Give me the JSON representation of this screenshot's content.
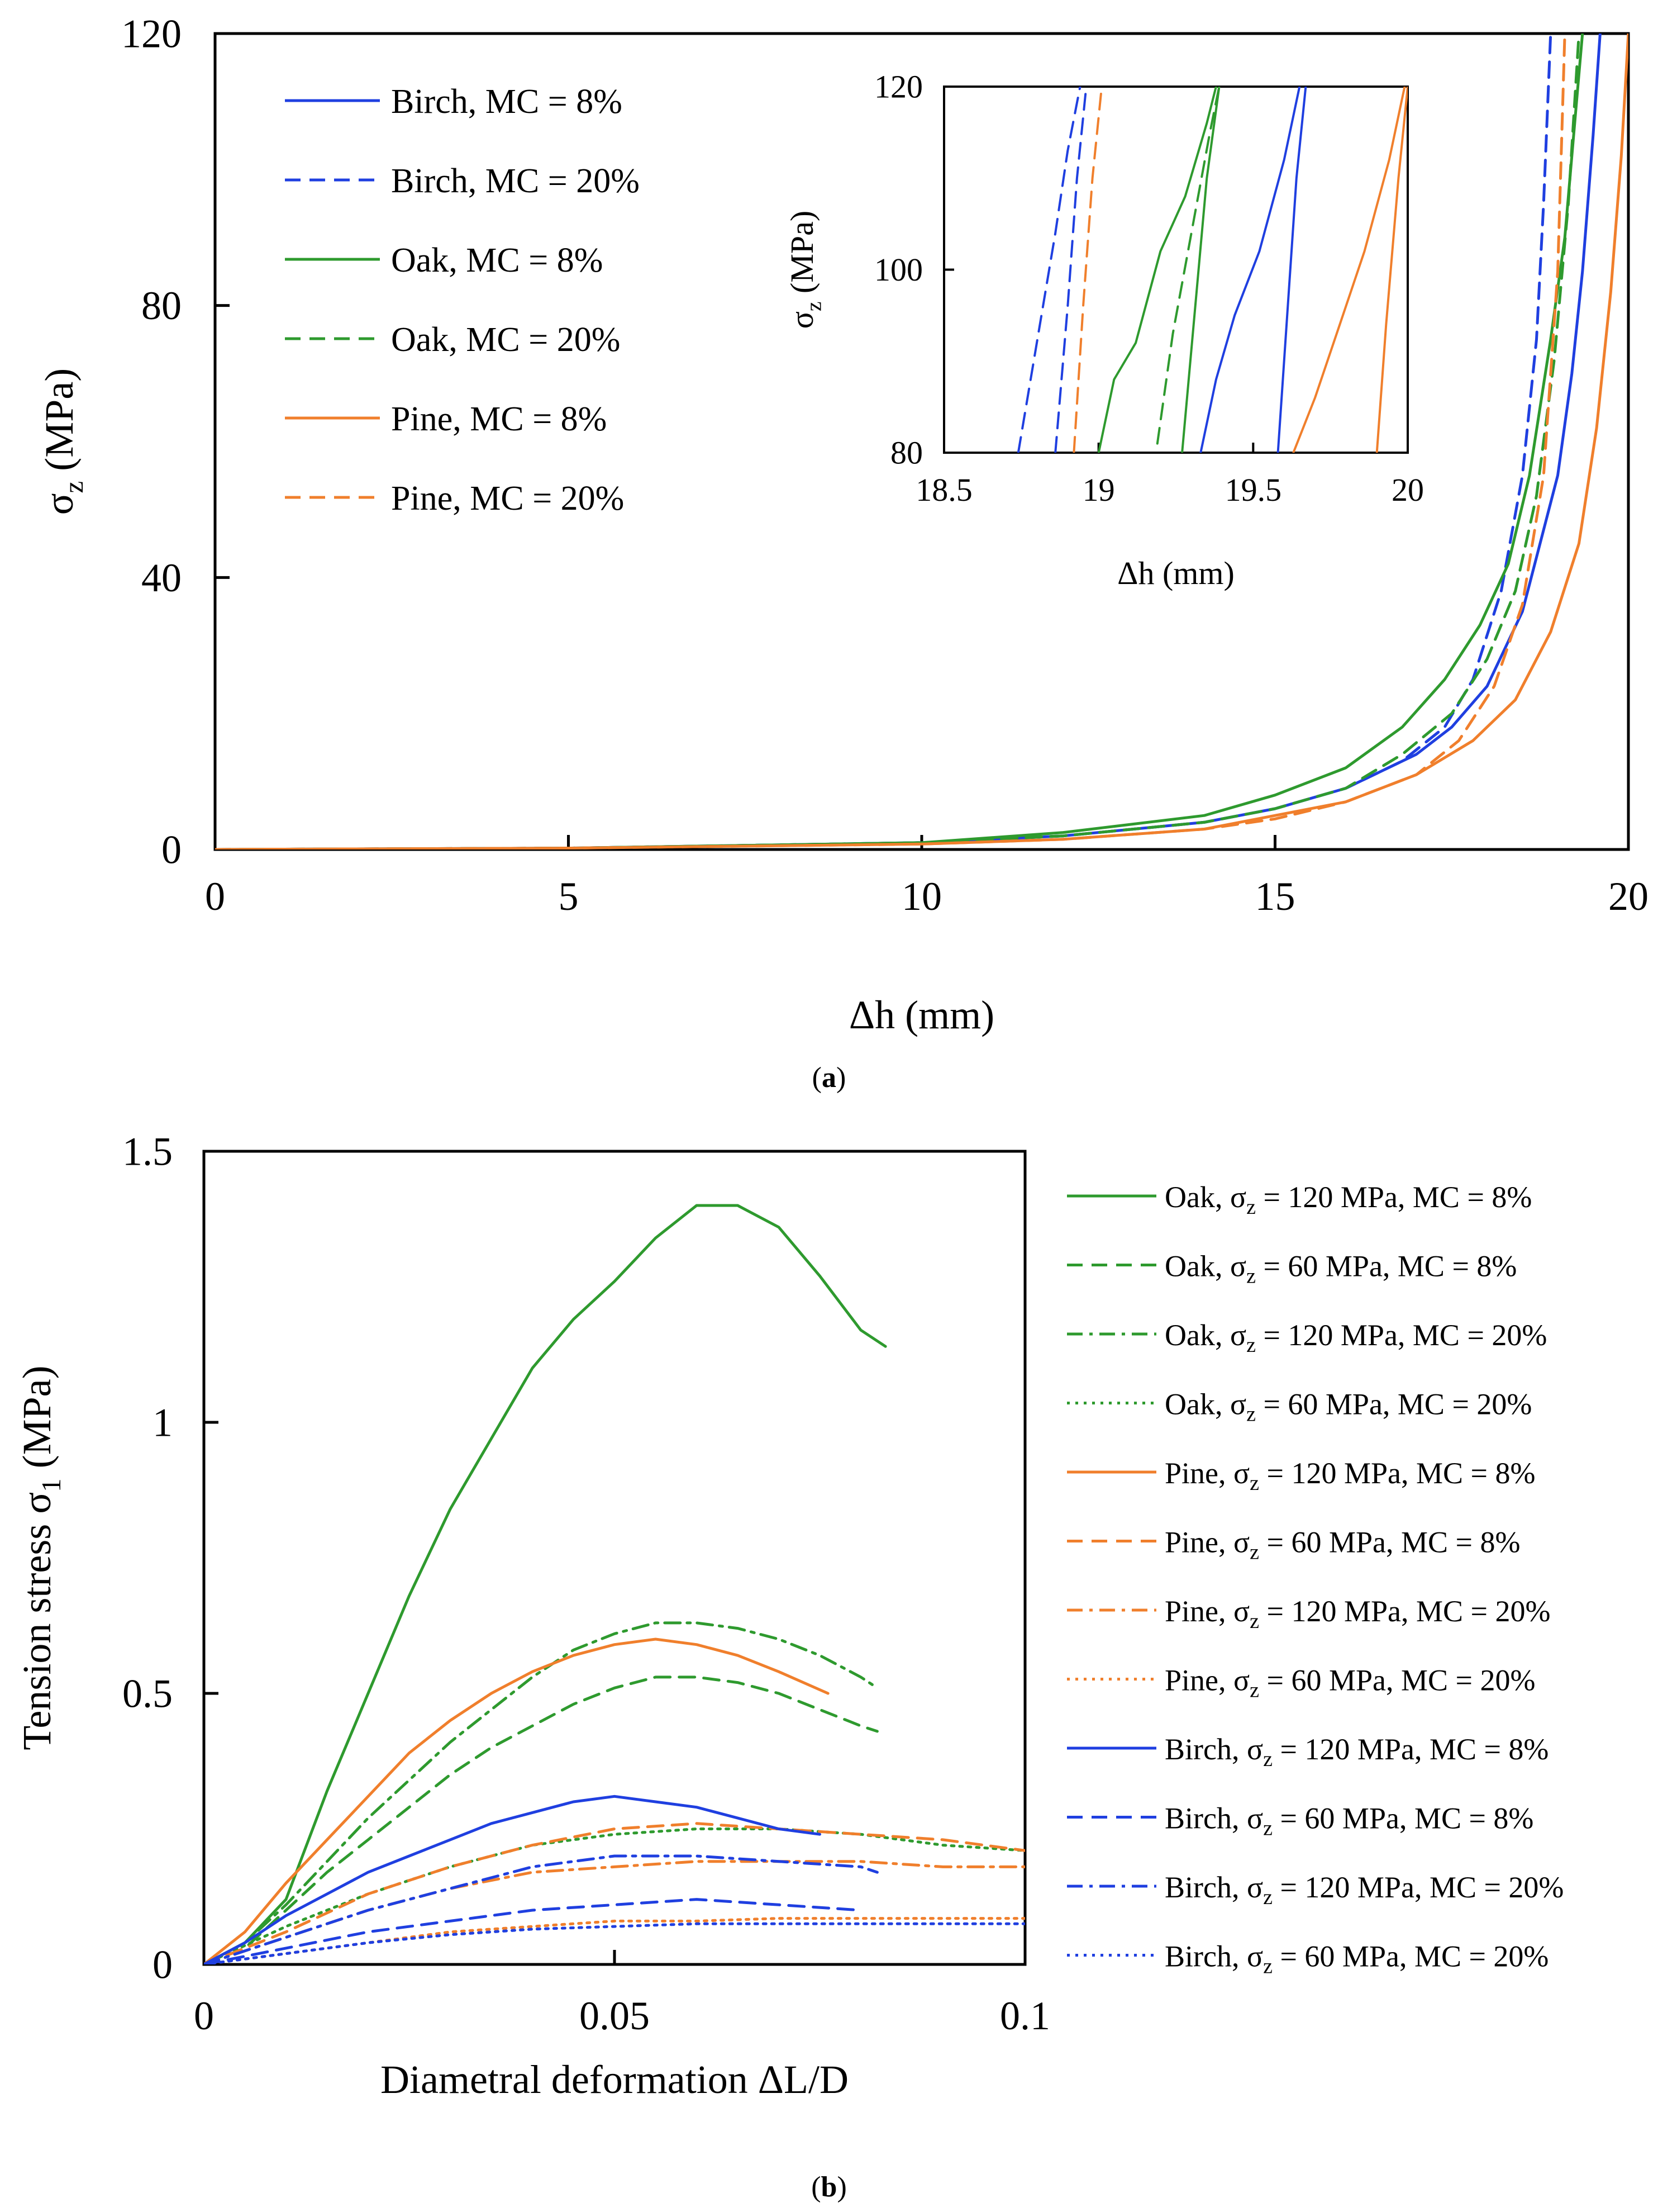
{
  "colors": {
    "birch": "#1f3fe0",
    "oak": "#2e9a2e",
    "pine": "#f07f2c",
    "axis": "#000000"
  },
  "panel_labels": {
    "a": "a",
    "b": "b"
  },
  "chart_data": [
    {
      "id": "a",
      "type": "line",
      "xlabel": "Δh  (mm)",
      "ylabel": "σ",
      "ylabel_sub": "z",
      "ylabel_unit": "(MPa)",
      "xlim": [
        0,
        20
      ],
      "ylim": [
        0,
        120
      ],
      "xticks": [
        "0",
        "5",
        "10",
        "15",
        "20"
      ],
      "yticks": [
        "0",
        "40",
        "80",
        "120"
      ],
      "legend": "top-left",
      "series": [
        {
          "name": "Birch, MC = 8%",
          "color": "birch",
          "dash": "solid",
          "x": [
            0,
            5,
            10,
            12,
            14,
            15,
            16,
            17,
            17.5,
            18,
            18.5,
            19,
            19.2,
            19.35,
            19.5,
            19.6
          ],
          "y": [
            0,
            0.2,
            1,
            2,
            4,
            6,
            9,
            14,
            18,
            24,
            35,
            55,
            70,
            85,
            105,
            120
          ]
        },
        {
          "name": "Birch, MC = 20%",
          "color": "birch",
          "dash": "dash",
          "x": [
            0,
            5,
            10,
            12,
            14,
            15,
            16,
            16.8,
            17.4,
            17.8,
            18.2,
            18.5,
            18.7,
            18.8,
            18.9
          ],
          "y": [
            0,
            0.2,
            1,
            2,
            4,
            6,
            9,
            13,
            18,
            25,
            38,
            55,
            75,
            95,
            120
          ]
        },
        {
          "name": "Oak, MC = 8%",
          "color": "oak",
          "dash": "solid",
          "x": [
            0,
            5,
            10,
            12,
            14,
            15,
            16,
            16.8,
            17.4,
            17.9,
            18.3,
            18.6,
            18.9,
            19.1,
            19.25,
            19.35
          ],
          "y": [
            0,
            0.2,
            1,
            2.5,
            5,
            8,
            12,
            18,
            25,
            33,
            42,
            55,
            75,
            90,
            108,
            120
          ]
        },
        {
          "name": "Oak, MC = 20%",
          "color": "oak",
          "dash": "dash",
          "x": [
            0,
            5,
            10,
            12,
            14,
            15,
            16,
            16.8,
            17.5,
            18,
            18.4,
            18.7,
            18.95,
            19.15,
            19.3
          ],
          "y": [
            0,
            0.2,
            1,
            2,
            4,
            6,
            9,
            14,
            20,
            28,
            38,
            52,
            72,
            95,
            120
          ]
        },
        {
          "name": "Pine, MC = 8%",
          "color": "pine",
          "dash": "solid",
          "x": [
            0,
            5,
            10,
            12,
            14,
            15,
            16,
            17,
            17.8,
            18.4,
            18.9,
            19.3,
            19.55,
            19.75,
            19.9,
            20
          ],
          "y": [
            0,
            0.2,
            0.8,
            1.5,
            3,
            5,
            7,
            11,
            16,
            22,
            32,
            45,
            62,
            82,
            102,
            120
          ]
        },
        {
          "name": "Pine, MC = 20%",
          "color": "pine",
          "dash": "dash",
          "x": [
            0,
            5,
            10,
            12,
            14,
            15,
            16,
            17,
            17.6,
            18.1,
            18.5,
            18.8,
            19,
            19.1
          ],
          "y": [
            0,
            0.2,
            0.8,
            1.5,
            3,
            4.5,
            7,
            11,
            16,
            24,
            36,
            55,
            85,
            120
          ]
        }
      ],
      "inset": {
        "xlabel": "Δh  (mm)",
        "ylabel": "σ",
        "ylabel_sub": "z",
        "ylabel_unit": "(MPa)",
        "xlim": [
          18.5,
          20
        ],
        "ylim": [
          80,
          120
        ],
        "xticks": [
          "18.5",
          "19",
          "19.5",
          "20"
        ],
        "yticks": [
          "80",
          "100",
          "120"
        ],
        "series": [
          {
            "name": "Birch, MC = 20%",
            "color": "birch",
            "dash": "dash",
            "x": [
              18.74,
              18.8,
              18.86,
              18.9,
              18.94
            ],
            "y": [
              80,
              92,
              104,
              113,
              120
            ]
          },
          {
            "name": "Birch, MC = 20%",
            "color": "birch",
            "dash": "dash",
            "x": [
              18.86,
              18.9,
              18.93,
              18.96
            ],
            "y": [
              80,
              96,
              110,
              120
            ]
          },
          {
            "name": "Pine, MC = 20%",
            "color": "pine",
            "dash": "dash",
            "x": [
              18.92,
              18.95,
              18.98,
              19.01
            ],
            "y": [
              80,
              96,
              110,
              120
            ]
          },
          {
            "name": "Oak, MC = 8%",
            "color": "oak",
            "dash": "solid",
            "x": [
              19,
              19.05,
              19.12,
              19.2,
              19.28,
              19.35,
              19.38
            ],
            "y": [
              80,
              88,
              92,
              102,
              108,
              116,
              120
            ]
          },
          {
            "name": "Oak, MC = 20%",
            "color": "oak",
            "dash": "dash",
            "x": [
              19.19,
              19.24,
              19.3,
              19.36,
              19.39
            ],
            "y": [
              81,
              93,
              104,
              115,
              120
            ]
          },
          {
            "name": "Oak, MC = 8%",
            "color": "oak",
            "dash": "solid",
            "x": [
              19.27,
              19.31,
              19.35,
              19.39
            ],
            "y": [
              80,
              95,
              110,
              120
            ]
          },
          {
            "name": "Birch, MC = 8%",
            "color": "birch",
            "dash": "solid",
            "x": [
              19.33,
              19.38,
              19.44,
              19.52,
              19.6,
              19.65
            ],
            "y": [
              80,
              88,
              95,
              102,
              112,
              120
            ]
          },
          {
            "name": "Birch, MC = 8%",
            "color": "birch",
            "dash": "solid",
            "x": [
              19.58,
              19.61,
              19.64,
              19.67
            ],
            "y": [
              80,
              95,
              110,
              120
            ]
          },
          {
            "name": "Pine, MC = 8%",
            "color": "pine",
            "dash": "solid",
            "x": [
              19.63,
              19.7,
              19.78,
              19.86,
              19.94,
              19.99
            ],
            "y": [
              80,
              86,
              94,
              102,
              112,
              120
            ]
          },
          {
            "name": "Pine, MC = 8%",
            "color": "pine",
            "dash": "solid",
            "x": [
              19.9,
              19.93,
              19.97,
              20
            ],
            "y": [
              80,
              94,
              110,
              120
            ]
          }
        ]
      }
    },
    {
      "id": "b",
      "type": "line",
      "xlabel": "Diametral deformation ΔL/D",
      "ylabel": "Tension stress  σ",
      "ylabel_sub": "1",
      "ylabel_unit": "(MPa)",
      "xlim": [
        0,
        0.1
      ],
      "ylim": [
        0,
        1.5
      ],
      "xticks": [
        "0",
        "0.05",
        "0.1"
      ],
      "yticks": [
        "0",
        "0.5",
        "1",
        "1.5"
      ],
      "legend": "right",
      "legend_sigma": "σ",
      "legend_sub": "z",
      "series": [
        {
          "species": "Oak,",
          "stress": "= 120 MPa, MC = 8%",
          "color": "oak",
          "dash": "solid",
          "x": [
            0,
            0.005,
            0.01,
            0.015,
            0.02,
            0.025,
            0.03,
            0.035,
            0.04,
            0.045,
            0.05,
            0.055,
            0.06,
            0.065,
            0.07,
            0.075,
            0.08,
            0.083
          ],
          "y": [
            0,
            0.04,
            0.12,
            0.32,
            0.5,
            0.68,
            0.84,
            0.97,
            1.1,
            1.19,
            1.26,
            1.34,
            1.4,
            1.4,
            1.36,
            1.27,
            1.17,
            1.14
          ]
        },
        {
          "species": "Oak,",
          "stress": "=   60 MPa, MC = 8%",
          "color": "oak",
          "dash": "dash",
          "x": [
            0,
            0.005,
            0.01,
            0.015,
            0.02,
            0.025,
            0.03,
            0.035,
            0.04,
            0.045,
            0.05,
            0.055,
            0.06,
            0.065,
            0.07,
            0.075,
            0.08,
            0.082
          ],
          "y": [
            0,
            0.03,
            0.1,
            0.17,
            0.23,
            0.29,
            0.35,
            0.4,
            0.44,
            0.48,
            0.51,
            0.53,
            0.53,
            0.52,
            0.5,
            0.47,
            0.44,
            0.43
          ]
        },
        {
          "species": "Oak,",
          "stress": "= 120 MPa, MC = 20%",
          "color": "oak",
          "dash": "dashdot",
          "x": [
            0,
            0.005,
            0.01,
            0.015,
            0.02,
            0.025,
            0.03,
            0.035,
            0.04,
            0.045,
            0.05,
            0.055,
            0.06,
            0.065,
            0.07,
            0.075,
            0.08,
            0.082
          ],
          "y": [
            0,
            0.04,
            0.11,
            0.19,
            0.27,
            0.34,
            0.41,
            0.47,
            0.53,
            0.58,
            0.61,
            0.63,
            0.63,
            0.62,
            0.6,
            0.57,
            0.53,
            0.51
          ]
        },
        {
          "species": "Oak,",
          "stress": "=   60 MPa, MC = 20%",
          "color": "oak",
          "dash": "dot",
          "x": [
            0,
            0.01,
            0.02,
            0.03,
            0.04,
            0.05,
            0.06,
            0.07,
            0.08,
            0.09,
            0.1
          ],
          "y": [
            0,
            0.07,
            0.13,
            0.18,
            0.22,
            0.24,
            0.25,
            0.25,
            0.24,
            0.22,
            0.21
          ]
        },
        {
          "species": "Pine,",
          "stress": "= 120 MPa, MC = 8%",
          "color": "pine",
          "dash": "solid",
          "x": [
            0,
            0.005,
            0.01,
            0.015,
            0.02,
            0.025,
            0.03,
            0.035,
            0.04,
            0.045,
            0.05,
            0.055,
            0.06,
            0.065,
            0.07,
            0.076
          ],
          "y": [
            0,
            0.06,
            0.15,
            0.23,
            0.31,
            0.39,
            0.45,
            0.5,
            0.54,
            0.57,
            0.59,
            0.6,
            0.59,
            0.57,
            0.54,
            0.5
          ]
        },
        {
          "species": "Pine,",
          "stress": "=   60 MPa, MC = 8%",
          "color": "pine",
          "dash": "dash",
          "x": [
            0,
            0.01,
            0.02,
            0.03,
            0.04,
            0.05,
            0.06,
            0.07,
            0.08,
            0.09,
            0.1
          ],
          "y": [
            0,
            0.06,
            0.13,
            0.18,
            0.22,
            0.25,
            0.26,
            0.25,
            0.24,
            0.23,
            0.21
          ]
        },
        {
          "species": "Pine,",
          "stress": "= 120 MPa, MC = 20%",
          "color": "pine",
          "dash": "dashdot",
          "x": [
            0,
            0.01,
            0.02,
            0.03,
            0.04,
            0.05,
            0.06,
            0.07,
            0.08,
            0.09,
            0.1
          ],
          "y": [
            0,
            0.05,
            0.1,
            0.14,
            0.17,
            0.18,
            0.19,
            0.19,
            0.19,
            0.18,
            0.18
          ]
        },
        {
          "species": "Pine,",
          "stress": "=   60 MPa, MC = 20%",
          "color": "pine",
          "dash": "dot",
          "x": [
            0,
            0.01,
            0.02,
            0.03,
            0.04,
            0.05,
            0.06,
            0.07,
            0.08,
            0.09,
            0.1
          ],
          "y": [
            0,
            0.02,
            0.04,
            0.06,
            0.07,
            0.08,
            0.08,
            0.085,
            0.085,
            0.085,
            0.085
          ]
        },
        {
          "species": "Birch,",
          "stress": "= 120 MPa, MC = 8%",
          "color": "birch",
          "dash": "solid",
          "x": [
            0,
            0.005,
            0.01,
            0.015,
            0.02,
            0.025,
            0.03,
            0.035,
            0.04,
            0.045,
            0.05,
            0.055,
            0.06,
            0.065,
            0.07,
            0.075
          ],
          "y": [
            0,
            0.04,
            0.09,
            0.13,
            0.17,
            0.2,
            0.23,
            0.26,
            0.28,
            0.3,
            0.31,
            0.3,
            0.29,
            0.27,
            0.25,
            0.24
          ]
        },
        {
          "species": "Birch,",
          "stress": "=   60 MPa, MC = 8%",
          "color": "birch",
          "dash": "dash",
          "x": [
            0,
            0.01,
            0.02,
            0.03,
            0.04,
            0.05,
            0.06,
            0.07,
            0.08
          ],
          "y": [
            0,
            0.03,
            0.06,
            0.08,
            0.1,
            0.11,
            0.12,
            0.11,
            0.1
          ]
        },
        {
          "species": "Birch,",
          "stress": "= 120 MPa, MC = 20%",
          "color": "birch",
          "dash": "dashdot",
          "x": [
            0,
            0.01,
            0.02,
            0.03,
            0.04,
            0.05,
            0.06,
            0.07,
            0.08,
            0.082
          ],
          "y": [
            0,
            0.05,
            0.1,
            0.14,
            0.18,
            0.2,
            0.2,
            0.19,
            0.18,
            0.17
          ]
        },
        {
          "species": "Birch,",
          "stress": "=   60 MPa, MC = 20%",
          "color": "birch",
          "dash": "dot",
          "x": [
            0,
            0.01,
            0.02,
            0.03,
            0.04,
            0.05,
            0.06,
            0.07,
            0.08,
            0.09,
            0.1
          ],
          "y": [
            0,
            0.02,
            0.04,
            0.055,
            0.065,
            0.07,
            0.075,
            0.075,
            0.075,
            0.075,
            0.075
          ]
        }
      ]
    }
  ]
}
